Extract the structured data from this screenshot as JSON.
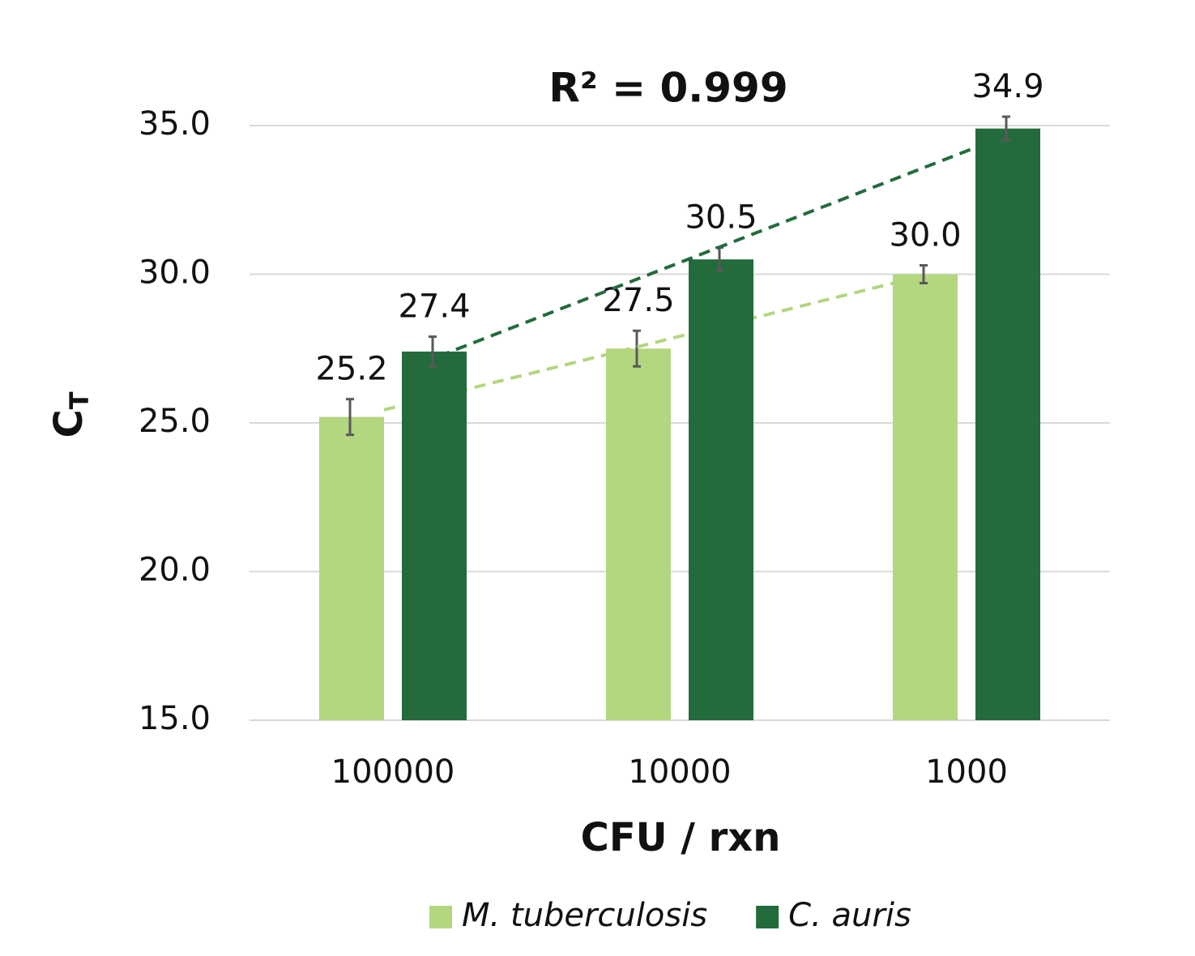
{
  "chart_data": {
    "type": "bar",
    "annotation": "R² = 0.999",
    "xlabel": "CFU / rxn",
    "ylabel": "C",
    "ylabel_subscript": "T",
    "categories": [
      "100000",
      "10000",
      "1000"
    ],
    "series": [
      {
        "name": "M. tuberculosis",
        "color": "#b3d67f",
        "values": [
          25.2,
          27.5,
          30.0
        ],
        "value_labels": [
          "25.2",
          "27.5",
          "30.0"
        ],
        "errors": [
          0.6,
          0.6,
          0.3
        ]
      },
      {
        "name": "C. auris",
        "color": "#236b3d",
        "values": [
          27.4,
          30.5,
          34.9
        ],
        "value_labels": [
          "27.4",
          "30.5",
          "34.9"
        ],
        "errors": [
          0.5,
          0.4,
          0.4
        ]
      }
    ],
    "trendline": "linear",
    "ylim": [
      15,
      35
    ],
    "yticks": [
      {
        "value": 15,
        "label": "15.0"
      },
      {
        "value": 20,
        "label": "20.0"
      },
      {
        "value": 25,
        "label": "25.0"
      },
      {
        "value": 30,
        "label": "30.0"
      },
      {
        "value": 35,
        "label": "35.0"
      }
    ],
    "grid": true,
    "legend": "bottom"
  }
}
